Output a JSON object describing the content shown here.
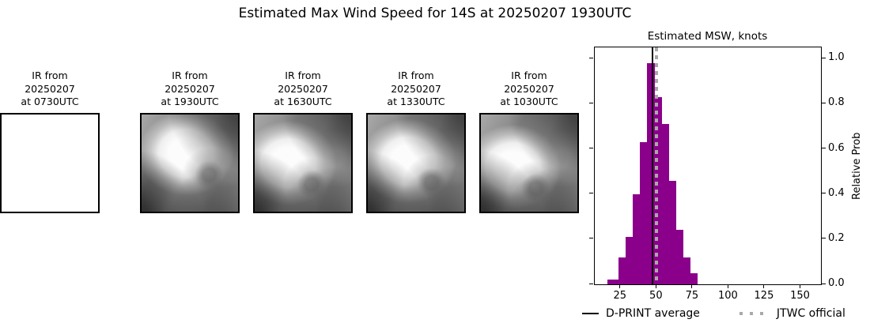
{
  "title": "Estimated Max Wind Speed for 14S at 20250207 1930UTC",
  "ir_panels": [
    {
      "line1": "IR from",
      "line2": "20250207",
      "line3": "at 1930UTC"
    },
    {
      "line1": "IR from",
      "line2": "20250207",
      "line3": "at 1630UTC"
    },
    {
      "line1": "IR from",
      "line2": "20250207",
      "line3": "at 1330UTC"
    },
    {
      "line1": "IR from",
      "line2": "20250207",
      "line3": "at 1030UTC"
    },
    {
      "line1": "IR from",
      "line2": "20250207",
      "line3": "at 0730UTC"
    }
  ],
  "chart": {
    "title": "Estimated MSW, knots",
    "ylabel": "Relative Prob",
    "legend": {
      "dprint_label": "D-PRINT average",
      "jtwc_label": "JTWC official"
    }
  },
  "chart_data": {
    "type": "bar",
    "subtype": "histogram",
    "title": "Estimated MSW, knots",
    "xlabel": "",
    "ylabel": "Relative Prob",
    "bin_edges": [
      16,
      23.5,
      28.5,
      33.5,
      38.5,
      43.5,
      48.5,
      53.5,
      58.5,
      63.5,
      68.5,
      73.5,
      78.5
    ],
    "values": [
      0.02,
      0.12,
      0.21,
      0.4,
      0.63,
      0.98,
      0.83,
      0.71,
      0.46,
      0.24,
      0.12,
      0.05
    ],
    "x_ticks": [
      25,
      50,
      75,
      100,
      125,
      150
    ],
    "y_ticks": [
      0.0,
      0.2,
      0.4,
      0.6,
      0.8,
      1.0
    ],
    "xlim": [
      7,
      164
    ],
    "ylim": [
      0,
      1.05
    ],
    "bar_color": "#8b008b",
    "dprint_average": 47,
    "dprint_line_color": "#000000",
    "jtwc_official": 50,
    "jtwc_line_color": "#a9a9a9",
    "legend": [
      "D-PRINT average",
      "JTWC official"
    ],
    "legend_position": "bottom",
    "grid": false,
    "ytick_label_side": "right"
  }
}
